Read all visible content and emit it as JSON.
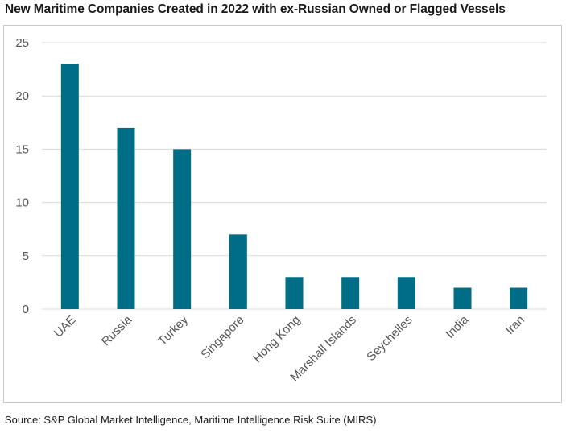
{
  "title": "New Maritime Companies Created in 2022 with ex-Russian Owned or Flagged Vessels",
  "source": "Source: S&P Global Market Intelligence, Maritime Intelligence Risk Suite (MIRS)",
  "colors": {
    "bar": "#006d87",
    "grid": "#d9d9d9",
    "axis_text": "#555555"
  },
  "chart_data": {
    "type": "bar",
    "title": "New Maritime Companies Created in 2022 with ex-Russian Owned or Flagged Vessels",
    "categories": [
      "UAE",
      "Russia",
      "Turkey",
      "Singapore",
      "Hong Kong",
      "Marshall Islands",
      "Seychelles",
      "India",
      "Iran"
    ],
    "values": [
      23,
      17,
      15,
      7,
      3,
      3,
      3,
      2,
      2
    ],
    "yticks": [
      0,
      5,
      10,
      15,
      20,
      25
    ],
    "ylim": [
      0,
      25
    ],
    "xlabel": "",
    "ylabel": "",
    "grid": true,
    "legend": "none"
  }
}
